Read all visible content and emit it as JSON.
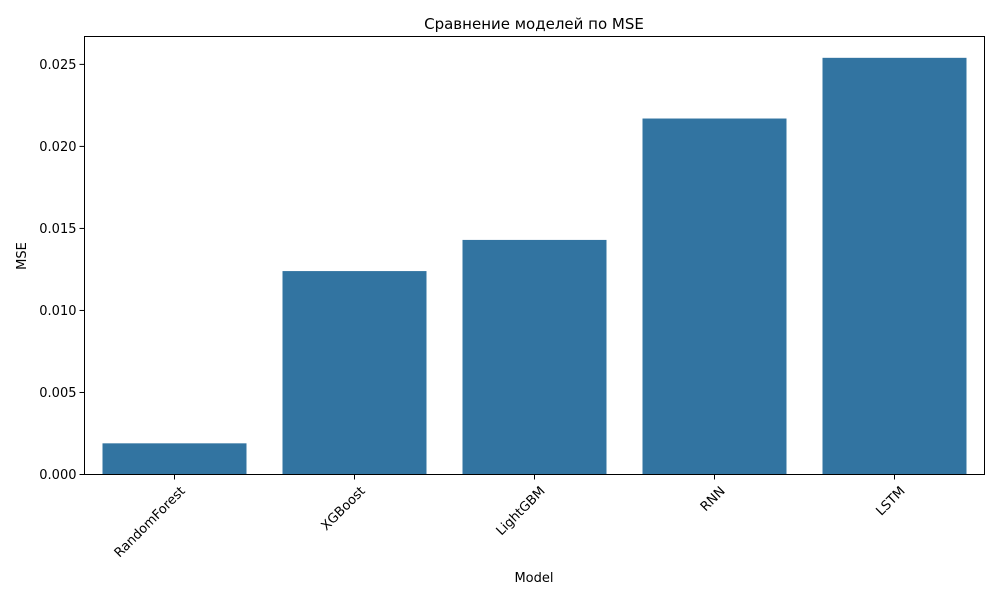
{
  "chart_data": {
    "type": "bar",
    "title": "Сравнение моделей по MSE",
    "xlabel": "Model",
    "ylabel": "MSE",
    "categories": [
      "RandomForest",
      "XGBoost",
      "LightGBM",
      "RNN",
      "LSTM"
    ],
    "values": [
      0.0019,
      0.0124,
      0.0143,
      0.0217,
      0.0254
    ],
    "ylim": [
      0,
      0.0267
    ],
    "yticks": [
      "0.000",
      "0.005",
      "0.010",
      "0.015",
      "0.020",
      "0.025"
    ],
    "ytick_values": [
      0,
      0.005,
      0.01,
      0.015,
      0.02,
      0.025
    ],
    "bar_color": "#3274a1",
    "grid": false,
    "legend": "none",
    "xtick_rotation_deg": 45
  }
}
